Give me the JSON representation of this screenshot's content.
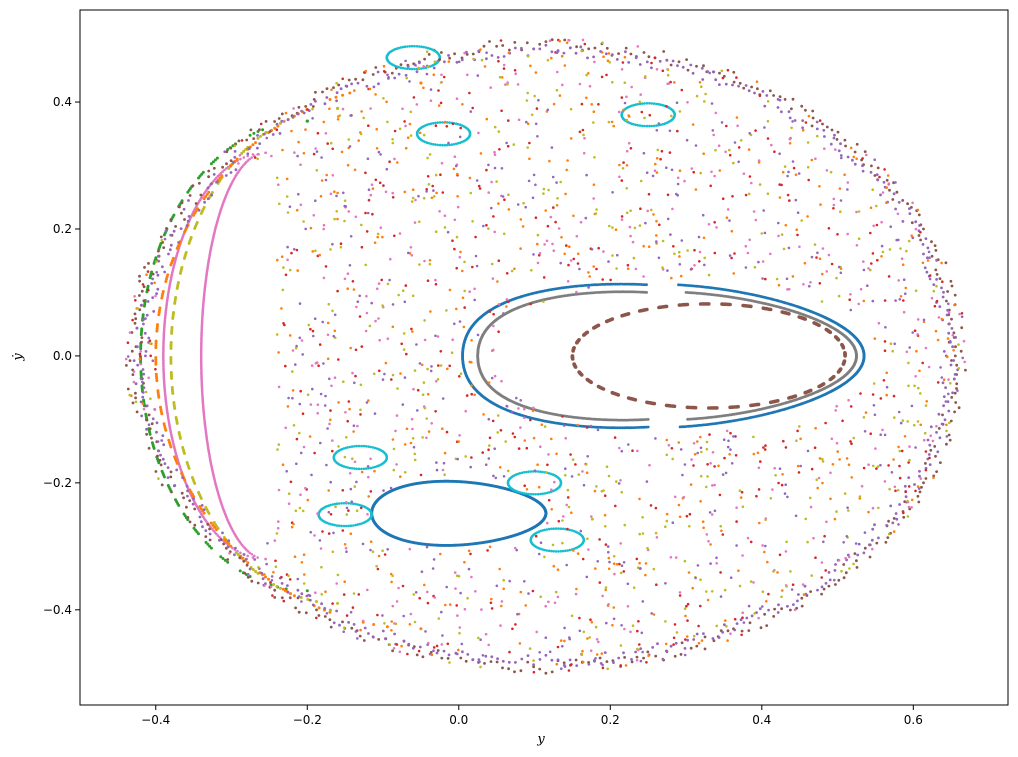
{
  "chart_data": {
    "type": "scatter",
    "title": "",
    "xlabel": "y",
    "ylabel": "ẏ",
    "xlim": [
      -0.5,
      0.725
    ],
    "ylim": [
      -0.55,
      0.545
    ],
    "grid": false,
    "legend": "none",
    "xticks": [
      -0.4,
      -0.2,
      0.0,
      0.2,
      0.4,
      0.6
    ],
    "xtick_labels": [
      "−0.4",
      "−0.2",
      "0.0",
      "0.2",
      "0.4",
      "0.6"
    ],
    "yticks": [
      -0.4,
      -0.2,
      0.0,
      0.2,
      0.4
    ],
    "ytick_labels": [
      "−0.4",
      "−0.2",
      "0.0",
      "0.2",
      "0.4"
    ],
    "series": [
      {
        "color": "#1f77b4",
        "kind": "closed-curve",
        "center": [
          0.29,
          0.0
        ],
        "rx": 0.245,
        "ry": 0.112,
        "left_cusp": 0.005
      },
      {
        "color": "#1f77b4",
        "kind": "closed-curve",
        "center": [
          0.0,
          -0.248
        ],
        "rx": 0.115,
        "ry": 0.05
      },
      {
        "color": "#7f7f7f",
        "kind": "closed-curve",
        "center": [
          0.3,
          0.0
        ],
        "rx": 0.225,
        "ry": 0.1,
        "left_cusp": 0.025
      },
      {
        "color": "#8c564b",
        "kind": "dashed-curve",
        "center": [
          0.33,
          0.0
        ],
        "rx": 0.18,
        "ry": 0.082
      },
      {
        "color": "#e377c2",
        "kind": "crescent",
        "tips": [
          [
            -0.255,
            0.32
          ],
          [
            -0.255,
            -0.32
          ]
        ],
        "outer_x": -0.39,
        "inner_x": -0.34
      },
      {
        "color": "#2ca02c",
        "kind": "dashed-arc",
        "outer_x": -0.42,
        "tip_x": -0.2,
        "tip_y": 0.37
      },
      {
        "color": "#bcbd22",
        "kind": "dashed-arc",
        "outer_x": -0.38,
        "tip_x": -0.16,
        "tip_y": 0.39
      },
      {
        "color": "#ff7f0e",
        "kind": "dashed-arc",
        "outer_x": -0.4,
        "tip_x": -0.05,
        "tip_y": 0.43
      },
      {
        "color": "#8c564b",
        "kind": "outer-ring",
        "extent": [
          -0.44,
          0.67
        ],
        "ymax": 0.5
      },
      {
        "color": "#9467bd",
        "kind": "outer-ring",
        "extent": [
          -0.43,
          0.66
        ],
        "ymax": 0.49
      },
      {
        "color": "#17becf",
        "kind": "islands",
        "centers": [
          [
            -0.13,
            -0.16
          ],
          [
            0.1,
            -0.2
          ],
          [
            -0.15,
            -0.25
          ],
          [
            0.13,
            -0.29
          ],
          [
            -0.06,
            0.47
          ],
          [
            0.25,
            0.38
          ],
          [
            -0.02,
            0.35
          ]
        ]
      },
      {
        "color": "#d62728",
        "kind": "chaotic-sea"
      },
      {
        "color": "#ff7f0e",
        "kind": "chaotic-sea"
      },
      {
        "color": "#e377c2",
        "kind": "chaotic-sea"
      },
      {
        "color": "#bcbd22",
        "kind": "chaotic-sea"
      },
      {
        "color": "#9467bd",
        "kind": "chaotic-sea"
      }
    ]
  }
}
